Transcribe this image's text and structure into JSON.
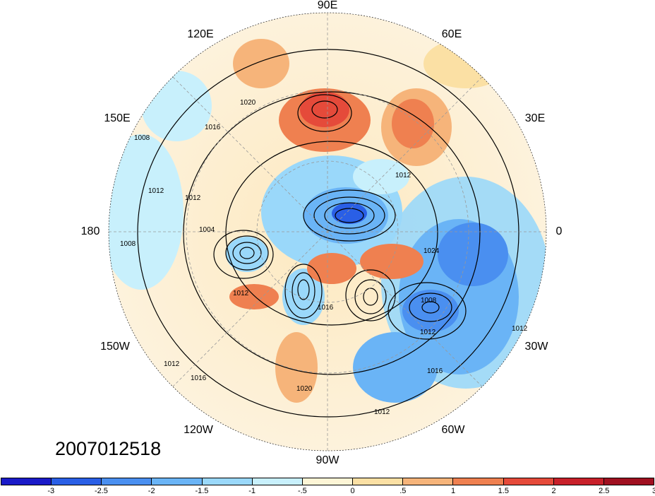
{
  "map": {
    "projection": "polar-stereographic-north",
    "longitude_labels": [
      {
        "id": "90e",
        "text": "90E"
      },
      {
        "id": "60e",
        "text": "60E"
      },
      {
        "id": "120e",
        "text": "120E"
      },
      {
        "id": "30e",
        "text": "30E"
      },
      {
        "id": "150e",
        "text": "150E"
      },
      {
        "id": "180",
        "text": "180"
      },
      {
        "id": "0",
        "text": "0"
      },
      {
        "id": "150w",
        "text": "150W"
      },
      {
        "id": "30w",
        "text": "30W"
      },
      {
        "id": "120w",
        "text": "120W"
      },
      {
        "id": "60w",
        "text": "60W"
      },
      {
        "id": "90w",
        "text": "90W"
      }
    ],
    "contour_labels": [
      "1020",
      "1016",
      "1008",
      "1012",
      "1012",
      "1004",
      "1008",
      "1012",
      "1016",
      "1024",
      "1012",
      "1008",
      "1012",
      "1016",
      "1012",
      "1012",
      "1020",
      "1016",
      "1012"
    ],
    "timestamp": "2007012518"
  },
  "colorbar": {
    "colors": [
      "#1a1ac8",
      "#2a5fe6",
      "#4a8ff0",
      "#6ab4f6",
      "#9ad8fa",
      "#c8f0fc",
      "#fdf5d6",
      "#fbe0a4",
      "#f6b47a",
      "#ef8050",
      "#e54a3a",
      "#c8202a",
      "#a01020"
    ],
    "tick_labels": [
      "-3",
      "-2.5",
      "-2",
      "-1.5",
      "-1",
      "-.5",
      "0",
      ".5",
      "1",
      "1.5",
      "2",
      "2.5",
      "3"
    ]
  }
}
